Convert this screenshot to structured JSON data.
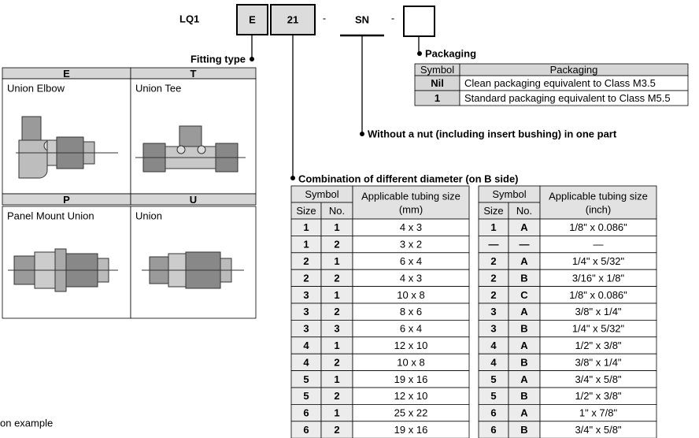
{
  "model": {
    "prefix": "LQ1",
    "fitting": "E",
    "diameter": "21",
    "separator": "-",
    "nut": "SN"
  },
  "fitting_type": {
    "title": "Fitting type",
    "cells": [
      {
        "symbol": "E",
        "name": "Union Elbow"
      },
      {
        "symbol": "T",
        "name": "Union Tee"
      },
      {
        "symbol": "P",
        "name": "Panel Mount Union"
      },
      {
        "symbol": "U",
        "name": "Union"
      }
    ]
  },
  "packaging": {
    "title": "Packaging",
    "headers": [
      "Symbol",
      "Packaging"
    ],
    "rows": [
      [
        "Nil",
        "Clean packaging equivalent to Class M3.5"
      ],
      [
        "1",
        "Standard packaging equivalent to Class M5.5"
      ]
    ]
  },
  "nut_option": "Without a nut (including insert bushing) in one part",
  "diameter": {
    "title": "Combination of different diameter (on B side)",
    "tables": [
      {
        "symbol": "Symbol",
        "size": "Size",
        "no": "No.",
        "tubing": "Applicable tubing size",
        "unit": "(mm)",
        "rows": [
          [
            "1",
            "1",
            "4 x 3"
          ],
          [
            "1",
            "2",
            "3 x 2"
          ],
          [
            "2",
            "1",
            "6 x 4"
          ],
          [
            "2",
            "2",
            "4 x 3"
          ],
          [
            "3",
            "1",
            "10 x 8"
          ],
          [
            "3",
            "2",
            "8 x 6"
          ],
          [
            "3",
            "3",
            "6 x 4"
          ],
          [
            "4",
            "1",
            "12 x 10"
          ],
          [
            "4",
            "2",
            "10 x 8"
          ],
          [
            "5",
            "1",
            "19 x 16"
          ],
          [
            "5",
            "2",
            "12 x 10"
          ],
          [
            "6",
            "1",
            "25 x 22"
          ],
          [
            "6",
            "2",
            "19 x 16"
          ]
        ]
      },
      {
        "symbol": "Symbol",
        "size": "Size",
        "no": "No.",
        "tubing": "Applicable tubing size",
        "unit": "(inch)",
        "rows": [
          [
            "1",
            "A",
            "1/8\" x 0.086\""
          ],
          [
            "—",
            "—",
            "—"
          ],
          [
            "2",
            "A",
            "1/4\" x 5/32\""
          ],
          [
            "2",
            "B",
            "3/16\" x 1/8\""
          ],
          [
            "2",
            "C",
            "1/8\" x 0.086\""
          ],
          [
            "3",
            "A",
            "3/8\" x 1/4\""
          ],
          [
            "3",
            "B",
            "1/4\" x 5/32\""
          ],
          [
            "4",
            "A",
            "1/2\" x 3/8\""
          ],
          [
            "4",
            "B",
            "3/8\" x 1/4\""
          ],
          [
            "5",
            "A",
            "3/4\" x 5/8\""
          ],
          [
            "5",
            "B",
            "1/2\" x 3/8\""
          ],
          [
            "6",
            "A",
            "1\" x 7/8\""
          ],
          [
            "6",
            "B",
            "3/4\" x 5/8\""
          ]
        ]
      }
    ]
  },
  "footer": "on example"
}
